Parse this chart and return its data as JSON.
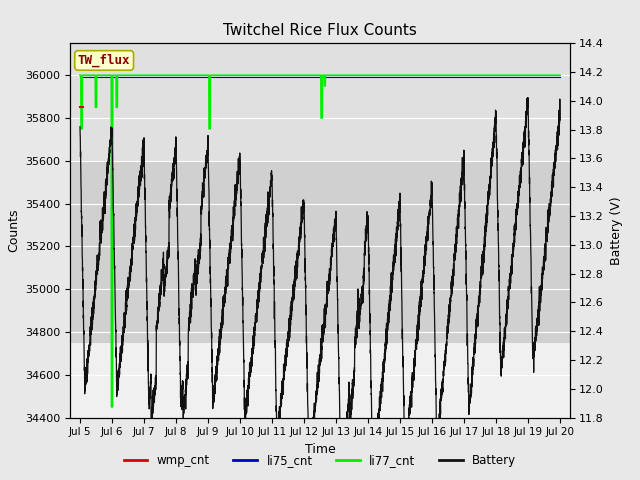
{
  "title": "Twitchel Rice Flux Counts",
  "xlabel": "Time",
  "ylabel_left": "Counts",
  "ylabel_right": "Battery (V)",
  "ylim_left": [
    34400,
    36150
  ],
  "ylim_right": [
    11.8,
    14.4
  ],
  "yticks_left": [
    34400,
    34600,
    34800,
    35000,
    35200,
    35400,
    35600,
    35800,
    36000
  ],
  "yticks_right": [
    11.8,
    12.0,
    12.2,
    12.4,
    12.6,
    12.8,
    13.0,
    13.2,
    13.4,
    13.6,
    13.8,
    14.0,
    14.2,
    14.4
  ],
  "xtick_labels": [
    "Jul 5",
    "Jul 6",
    "Jul 7",
    "Jul 8",
    "Jul 9",
    "Jul 10",
    "Jul 11",
    "Jul 12",
    "Jul 13",
    "Jul 14",
    "Jul 15",
    "Jul 16",
    "Jul 17",
    "Jul 18",
    "Jul 19",
    "Jul 20"
  ],
  "xtick_positions": [
    0,
    1,
    2,
    3,
    4,
    5,
    6,
    7,
    8,
    9,
    10,
    11,
    12,
    13,
    14,
    15
  ],
  "bg_color": "#e8e8e8",
  "plot_bg_light": "#f0f0f0",
  "plot_bg_dark": "#dcdcdc",
  "grid_color": "#cccccc",
  "annotation_box_text": "TW_flux",
  "annotation_box_color": "#ffffcc",
  "annotation_box_edge": "#aaaa00",
  "annotation_text_color": "#880000",
  "li77_color": "#00ee00",
  "li75_color": "#0000cc",
  "wmp_color": "#dd0000",
  "battery_color": "#111111",
  "shaded_top_ymin": 35600,
  "shaded_top_ymax": 36150,
  "shaded_mid_ymin": 34750,
  "shaded_mid_ymax": 35600,
  "shaded_top_color": "#e0e0e0",
  "shaded_mid_color": "#d0d0d0"
}
